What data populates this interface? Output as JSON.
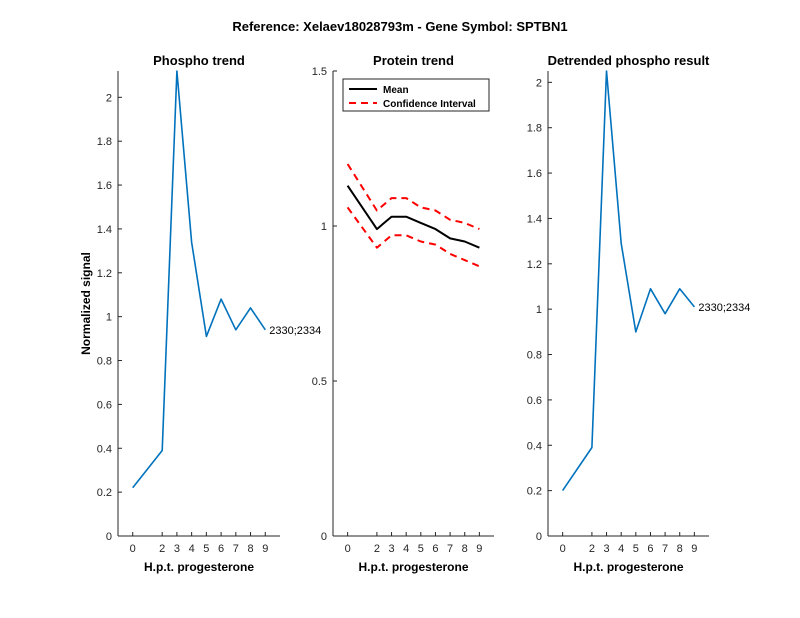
{
  "figure": {
    "suptitle": "Reference:  Xelaev18028793m - Gene Symbol:  SPTBN1"
  },
  "chart_data": [
    {
      "type": "line",
      "title": "Phospho trend",
      "xlabel": "H.p.t. progesterone",
      "ylabel": "Normalized signal",
      "categories": [
        "0",
        "2",
        "3",
        "4",
        "5",
        "6",
        "7",
        "8",
        "9"
      ],
      "ylim": [
        0,
        2.12
      ],
      "yticks": [
        0,
        0.2,
        0.4,
        0.6,
        0.8,
        1,
        1.2,
        1.4,
        1.6,
        1.8,
        2
      ],
      "series": [
        {
          "name": "",
          "color": "#0072BD",
          "values": [
            0.22,
            0.39,
            2.12,
            1.34,
            0.91,
            1.08,
            0.94,
            1.04,
            0.94
          ]
        }
      ],
      "annotation": "2330;2334",
      "grid": false
    },
    {
      "type": "line",
      "title": "Protein trend",
      "xlabel": "H.p.t. progesterone",
      "ylabel": "",
      "categories": [
        "0",
        "2",
        "3",
        "4",
        "5",
        "6",
        "7",
        "8",
        "9"
      ],
      "ylim": [
        0,
        1.5
      ],
      "yticks": [
        0,
        0.5,
        1,
        1.5
      ],
      "series": [
        {
          "name": "Mean",
          "color": "#000000",
          "style": "solid",
          "values": [
            1.13,
            0.99,
            1.03,
            1.03,
            1.01,
            0.99,
            0.96,
            0.95,
            0.93
          ]
        },
        {
          "name": "Confidence Interval",
          "color": "#FF0000",
          "style": "dashed",
          "values": [
            1.2,
            1.05,
            1.09,
            1.09,
            1.06,
            1.05,
            1.02,
            1.01,
            0.99
          ]
        },
        {
          "name": "",
          "color": "#FF0000",
          "style": "dashed",
          "values": [
            1.06,
            0.93,
            0.97,
            0.97,
            0.95,
            0.94,
            0.91,
            0.89,
            0.87
          ]
        }
      ],
      "legend": {
        "position": "top-left",
        "entries": [
          "Mean",
          "Confidence Interval"
        ]
      },
      "grid": false
    },
    {
      "type": "line",
      "title": "Detrended phospho result",
      "xlabel": "H.p.t. progesterone",
      "ylabel": "",
      "categories": [
        "0",
        "2",
        "3",
        "4",
        "5",
        "6",
        "7",
        "8",
        "9"
      ],
      "ylim": [
        0,
        2.05
      ],
      "yticks": [
        0,
        0.2,
        0.4,
        0.6,
        0.8,
        1,
        1.2,
        1.4,
        1.6,
        1.8,
        2
      ],
      "series": [
        {
          "name": "",
          "color": "#0072BD",
          "values": [
            0.2,
            0.39,
            2.05,
            1.29,
            0.9,
            1.09,
            0.98,
            1.09,
            1.01
          ]
        }
      ],
      "annotation": "2330;2334",
      "grid": false
    }
  ]
}
